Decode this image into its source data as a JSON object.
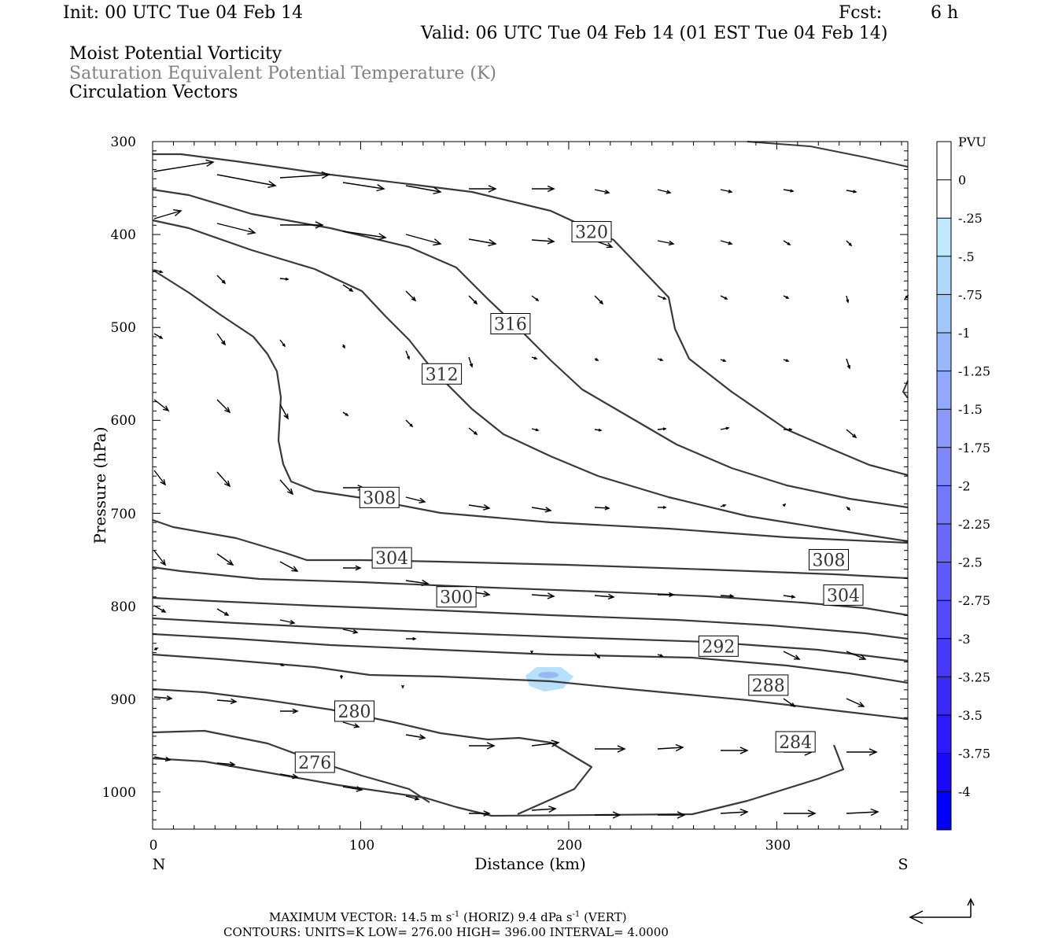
{
  "header": {
    "init": "Init: 00 UTC Tue 04 Feb 14",
    "fcst_label": "Fcst:",
    "fcst_value": "6 h",
    "valid": "Valid: 06 UTC Tue 04 Feb 14 (01 EST Tue 04 Feb 14)",
    "field1": "Moist Potential Vorticity",
    "field2": "Saturation Equivalent Potential Temperature (K)",
    "field3": "Circulation Vectors"
  },
  "footer": {
    "line1_prefix": "MAXIMUM VECTOR:  14.5 m s",
    "line1_exp1": "-1",
    "line1_mid": " (HORIZ)          9.4 dPa s",
    "line1_exp2": "-1",
    "line1_suffix": " (VERT)",
    "line2": "CONTOURS:  UNITS=K  LOW=  276.00       HIGH=  396.00       INTERVAL=    4.0000"
  },
  "chart_data": {
    "type": "cross-section contour",
    "xlabel": "Distance (km)",
    "ylabel": "Pressure (hPa)",
    "xlim": [
      0,
      363
    ],
    "ylim": [
      1040,
      300
    ],
    "x_ticks": [
      "0",
      "100",
      "200",
      "300"
    ],
    "y_ticks": [
      "300",
      "400",
      "500",
      "600",
      "700",
      "800",
      "900",
      "1000"
    ],
    "x_end_labels": {
      "left": "N",
      "right": "S"
    },
    "contour_labels": [
      {
        "text": "320",
        "x": 211,
        "p": 397
      },
      {
        "text": "316",
        "x": 172,
        "p": 496
      },
      {
        "text": "312",
        "x": 139,
        "p": 550
      },
      {
        "text": "308",
        "x": 109,
        "p": 683
      },
      {
        "text": "304",
        "x": 115,
        "p": 748
      },
      {
        "text": "300",
        "x": 146,
        "p": 790
      },
      {
        "text": "308",
        "x": 325,
        "p": 750
      },
      {
        "text": "304",
        "x": 332,
        "p": 788
      },
      {
        "text": "292",
        "x": 272,
        "p": 843
      },
      {
        "text": "288",
        "x": 296,
        "p": 885
      },
      {
        "text": "280",
        "x": 97,
        "p": 913
      },
      {
        "text": "284",
        "x": 309,
        "p": 946
      },
      {
        "text": "276",
        "x": 78,
        "p": 968
      }
    ],
    "colorbar": {
      "title": "PVU",
      "labels": [
        "0",
        "-.25",
        "-.5",
        "-.75",
        "-1",
        "-1.25",
        "-1.5",
        "-1.75",
        "-2",
        "-2.25",
        "-2.5",
        "-2.75",
        "-3",
        "-3.25",
        "-3.5",
        "-3.75",
        "-4"
      ],
      "colors": [
        "#ffffff",
        "#ffffff",
        "#c0e8fb",
        "#b0d8fb",
        "#a0c8fb",
        "#98b8fb",
        "#90a8fb",
        "#8898fb",
        "#7e88fb",
        "#7478fb",
        "#6a68fb",
        "#5f58fb",
        "#5448fb",
        "#4838fb",
        "#3b28fb",
        "#2c18fb",
        "#1a08fb",
        "#0000ff"
      ]
    },
    "contour_color": "#3a3a3a",
    "shading_color": "#b6e0fb"
  }
}
